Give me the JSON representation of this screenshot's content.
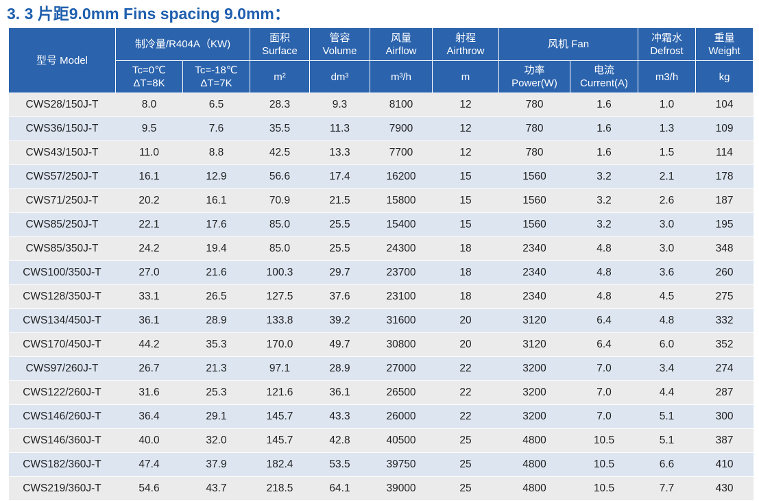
{
  "title": "3. 3 片距9.0mm Fins spacing 9.0mm：",
  "header": {
    "model": "型号 Model",
    "cooling": "制冷量/R404A（KW)",
    "cond1": [
      "Tc=0℃",
      "ΔT=8K"
    ],
    "cond2": [
      "Tc=-18℃",
      "ΔT=7K"
    ],
    "surface": [
      "面积",
      "Surface"
    ],
    "surface_unit": "m²",
    "volume": [
      "管容",
      "Volume"
    ],
    "volume_unit": "dm³",
    "airflow": [
      "风量",
      "Airflow"
    ],
    "airflow_unit": "m³/h",
    "airthrow": [
      "射程",
      "Airthrow"
    ],
    "airthrow_unit": "m",
    "fan": "风机 Fan",
    "power": [
      "功率",
      "Power(W)"
    ],
    "current": [
      "电流",
      "Current(A)"
    ],
    "defrost": [
      "冲霜水",
      "Defrost"
    ],
    "defrost_unit": "m3/h",
    "weight": [
      "重量",
      "Weight"
    ],
    "weight_unit": "kg"
  },
  "rows": [
    [
      "CWS28/150J-T",
      "8.0",
      "6.5",
      "28.3",
      "9.3",
      "8100",
      "12",
      "780",
      "1.6",
      "1.0",
      "104"
    ],
    [
      "CWS36/150J-T",
      "9.5",
      "7.6",
      "35.5",
      "11.3",
      "7900",
      "12",
      "780",
      "1.6",
      "1.3",
      "109"
    ],
    [
      "CWS43/150J-T",
      "11.0",
      "8.8",
      "42.5",
      "13.3",
      "7700",
      "12",
      "780",
      "1.6",
      "1.5",
      "114"
    ],
    [
      "CWS57/250J-T",
      "16.1",
      "12.9",
      "56.6",
      "17.4",
      "16200",
      "15",
      "1560",
      "3.2",
      "2.1",
      "178"
    ],
    [
      "CWS71/250J-T",
      "20.2",
      "16.1",
      "70.9",
      "21.5",
      "15800",
      "15",
      "1560",
      "3.2",
      "2.6",
      "187"
    ],
    [
      "CWS85/250J-T",
      "22.1",
      "17.6",
      "85.0",
      "25.5",
      "15400",
      "15",
      "1560",
      "3.2",
      "3.0",
      "195"
    ],
    [
      "CWS85/350J-T",
      "24.2",
      "19.4",
      "85.0",
      "25.5",
      "24300",
      "18",
      "2340",
      "4.8",
      "3.0",
      "348"
    ],
    [
      "CWS100/350J-T",
      "27.0",
      "21.6",
      "100.3",
      "29.7",
      "23700",
      "18",
      "2340",
      "4.8",
      "3.6",
      "260"
    ],
    [
      "CWS128/350J-T",
      "33.1",
      "26.5",
      "127.5",
      "37.6",
      "23100",
      "18",
      "2340",
      "4.8",
      "4.5",
      "275"
    ],
    [
      "CWS134/450J-T",
      "36.1",
      "28.9",
      "133.8",
      "39.2",
      "31600",
      "20",
      "3120",
      "6.4",
      "4.8",
      "332"
    ],
    [
      "CWS170/450J-T",
      "44.2",
      "35.3",
      "170.0",
      "49.7",
      "30800",
      "20",
      "3120",
      "6.4",
      "6.0",
      "352"
    ],
    [
      "CWS97/260J-T",
      "26.7",
      "21.3",
      "97.1",
      "28.9",
      "27000",
      "22",
      "3200",
      "7.0",
      "3.4",
      "274"
    ],
    [
      "CWS122/260J-T",
      "31.6",
      "25.3",
      "121.6",
      "36.1",
      "26500",
      "22",
      "3200",
      "7.0",
      "4.4",
      "287"
    ],
    [
      "CWS146/260J-T",
      "36.4",
      "29.1",
      "145.7",
      "43.3",
      "26000",
      "22",
      "3200",
      "7.0",
      "5.1",
      "300"
    ],
    [
      "CWS146/360J-T",
      "40.0",
      "32.0",
      "145.7",
      "42.8",
      "40500",
      "25",
      "4800",
      "10.5",
      "5.1",
      "387"
    ],
    [
      "CWS182/360J-T",
      "47.4",
      "37.9",
      "182.4",
      "53.5",
      "39750",
      "25",
      "4800",
      "10.5",
      "6.6",
      "410"
    ],
    [
      "CWS219/360J-T",
      "54.6",
      "43.7",
      "218.5",
      "64.1",
      "39000",
      "25",
      "4800",
      "10.5",
      "7.7",
      "430"
    ]
  ]
}
